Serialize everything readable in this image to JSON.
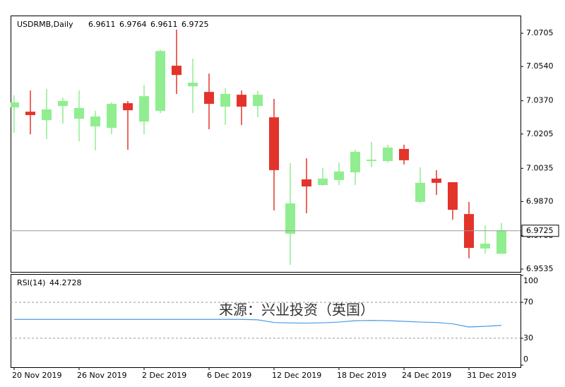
{
  "chart_data": {
    "type": "candlestick",
    "title": "USDRMB,Daily",
    "categories": [
      "20 Nov 2019",
      null,
      null,
      null,
      "26 Nov 2019",
      null,
      null,
      null,
      "2 Dec 2019",
      null,
      null,
      null,
      "6 Dec 2019",
      null,
      null,
      null,
      "12 Dec 2019",
      null,
      null,
      null,
      "18 Dec 2019",
      null,
      null,
      null,
      "24 Dec 2019",
      null,
      null,
      null,
      "31 Dec 2019",
      null,
      null
    ],
    "open": [
      7.0337,
      7.0316,
      7.0274,
      7.0344,
      7.0281,
      7.0243,
      7.0236,
      7.0358,
      7.0267,
      7.032,
      7.0544,
      7.0442,
      7.0414,
      7.0341,
      7.04,
      7.0344,
      7.0288,
      6.971,
      6.998,
      6.9952,
      6.9977,
      7.0015,
      7.0071,
      7.0071,
      7.0131,
      6.9868,
      6.9984,
      6.9966,
      6.9808,
      6.9637,
      6.9611
    ],
    "high": [
      7.0397,
      7.0421,
      7.0428,
      7.0386,
      7.0421,
      7.032,
      7.0362,
      7.0369,
      7.0449,
      7.0624,
      7.0723,
      7.0579,
      7.0505,
      7.0432,
      7.0421,
      7.0418,
      7.0379,
      7.0061,
      7.0085,
      7.0036,
      7.0064,
      7.0127,
      7.0166,
      7.0152,
      7.0152,
      7.004,
      7.0026,
      6.9966,
      6.9868,
      6.9752,
      6.9764
    ],
    "low": [
      7.0211,
      7.0204,
      7.018,
      7.0257,
      7.0169,
      7.0124,
      7.0204,
      7.0127,
      7.0204,
      7.0309,
      7.0404,
      7.0309,
      7.0229,
      7.025,
      7.025,
      7.0288,
      6.9826,
      6.9556,
      6.9812,
      6.9948,
      6.9952,
      6.9952,
      7.004,
      7.0064,
      7.0054,
      6.9864,
      6.9903,
      6.978,
      6.9588,
      6.9612,
      6.9611
    ],
    "close": [
      7.0362,
      7.0299,
      7.0327,
      7.0369,
      7.0334,
      7.0292,
      7.0355,
      7.0323,
      7.0393,
      7.0617,
      7.0498,
      7.046,
      7.0355,
      7.0404,
      7.0341,
      7.04,
      7.0026,
      6.9861,
      6.9945,
      6.9984,
      7.0019,
      7.0117,
      7.0078,
      7.0138,
      7.0075,
      6.9963,
      6.9963,
      6.9829,
      6.964,
      6.9661,
      6.9725
    ],
    "up_color": "#90ee90",
    "down_color": "#e3342b",
    "ylim": [
      6.9521,
      7.0793
    ],
    "yticks": [
      7.0705,
      {
        "value": 7.054,
        "label": "7.0540"
      },
      {
        "value": 7.037,
        "label": "7.0370"
      },
      7.0205,
      7.0035,
      {
        "value": 6.987,
        "label": "6.9870"
      },
      {
        "value": 6.97,
        "label": "6.9700"
      },
      6.9535
    ],
    "rsi": {
      "name": "RSI(14)",
      "color": "#4a9be8",
      "values": [
        51,
        51,
        51,
        51,
        51,
        51,
        51,
        51,
        51,
        51,
        51,
        51,
        51,
        51,
        51,
        50.5,
        47.5,
        47,
        46.8,
        47.2,
        48,
        49.5,
        49.8,
        49.5,
        48.8,
        48,
        47.5,
        46,
        42.5,
        43.2,
        44.2728
      ],
      "ylim": [
        0,
        100
      ],
      "yticks": [
        100,
        70,
        30,
        0
      ],
      "levels": [
        70,
        30
      ]
    },
    "annotation": "来源：兴业投资（英国）"
  }
}
